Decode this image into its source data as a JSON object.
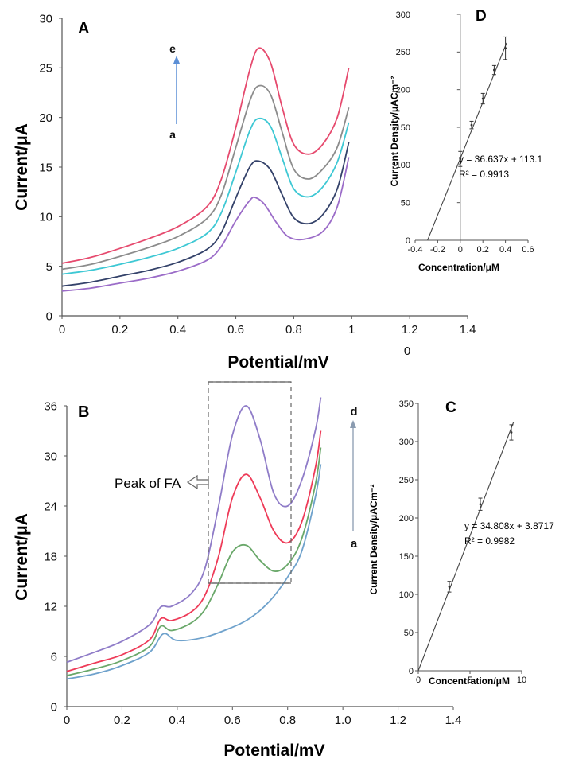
{
  "chart_data": [
    {
      "panel": "A",
      "type": "line",
      "xlabel": "Potential/mV",
      "ylabel": "Current/μA",
      "xlim": [
        0,
        1.4
      ],
      "ylim": [
        0,
        30
      ],
      "xticks": [
        "0",
        "0.2",
        "0.4",
        "0.6",
        "0.8",
        "1",
        "1.2",
        "1.4"
      ],
      "yticks": [
        "0",
        "5",
        "10",
        "15",
        "20",
        "25",
        "30"
      ],
      "arrow": {
        "from_label": "a",
        "to_label": "e"
      },
      "stray_label": "0",
      "series": [
        {
          "color": "#e64a6e",
          "x": [
            0,
            0.1,
            0.2,
            0.3,
            0.4,
            0.5,
            0.55,
            0.6,
            0.65,
            0.68,
            0.72,
            0.76,
            0.8,
            0.85,
            0.9,
            0.95,
            0.99
          ],
          "y": [
            5.3,
            5.9,
            6.8,
            7.8,
            9.0,
            11.0,
            13.8,
            19.0,
            25.0,
            27.0,
            25.5,
            21.0,
            17.3,
            16.3,
            17.3,
            20.0,
            25.0
          ]
        },
        {
          "color": "#8c8c8c",
          "x": [
            0,
            0.1,
            0.2,
            0.3,
            0.4,
            0.5,
            0.55,
            0.6,
            0.65,
            0.68,
            0.72,
            0.76,
            0.8,
            0.85,
            0.9,
            0.95,
            0.99
          ],
          "y": [
            4.7,
            5.2,
            6.0,
            6.9,
            8.0,
            9.8,
            12.2,
            17.0,
            21.8,
            23.2,
            22.3,
            18.5,
            14.8,
            13.8,
            14.8,
            17.0,
            21.0
          ]
        },
        {
          "color": "#3ec8d4",
          "x": [
            0,
            0.1,
            0.2,
            0.3,
            0.4,
            0.5,
            0.55,
            0.6,
            0.65,
            0.68,
            0.72,
            0.76,
            0.8,
            0.85,
            0.9,
            0.95,
            0.99
          ],
          "y": [
            4.2,
            4.6,
            5.2,
            5.9,
            6.8,
            8.3,
            10.4,
            14.5,
            18.8,
            19.9,
            19.1,
            15.9,
            12.8,
            12.0,
            13.0,
            15.5,
            19.5
          ]
        },
        {
          "color": "#34426a",
          "x": [
            0,
            0.1,
            0.2,
            0.3,
            0.4,
            0.5,
            0.55,
            0.6,
            0.65,
            0.68,
            0.72,
            0.76,
            0.8,
            0.85,
            0.9,
            0.95,
            0.99
          ],
          "y": [
            3.0,
            3.4,
            4.0,
            4.6,
            5.4,
            6.7,
            8.4,
            11.9,
            15.1,
            15.6,
            14.7,
            12.2,
            9.9,
            9.3,
            10.2,
            12.8,
            17.5
          ]
        },
        {
          "color": "#9b6cc8",
          "x": [
            0,
            0.1,
            0.2,
            0.3,
            0.4,
            0.5,
            0.55,
            0.6,
            0.65,
            0.67,
            0.7,
            0.74,
            0.78,
            0.83,
            0.9,
            0.95,
            0.99
          ],
          "y": [
            2.5,
            2.8,
            3.3,
            3.8,
            4.5,
            5.6,
            7.0,
            9.6,
            11.7,
            11.9,
            11.2,
            9.4,
            8.0,
            7.7,
            8.5,
            11.0,
            16.0
          ]
        }
      ]
    },
    {
      "panel": "B",
      "type": "line",
      "xlabel": "Potential/mV",
      "ylabel": "Current/μA",
      "xlim": [
        0,
        1.4
      ],
      "ylim": [
        0,
        36
      ],
      "xticks": [
        "0",
        "0.2",
        "0.4",
        "0.6",
        "0.8",
        "1.0",
        "1.2",
        "1.4"
      ],
      "yticks": [
        "0",
        "6",
        "12",
        "18",
        "24",
        "30",
        "36"
      ],
      "annotation": "Peak of FA",
      "arrow": {
        "from_label": "a",
        "to_label": "d"
      },
      "series": [
        {
          "color": "#8f7cc8",
          "x": [
            0,
            0.1,
            0.2,
            0.3,
            0.34,
            0.38,
            0.45,
            0.5,
            0.55,
            0.6,
            0.65,
            0.7,
            0.75,
            0.8,
            0.85,
            0.9,
            0.92
          ],
          "y": [
            5.3,
            6.5,
            7.8,
            9.8,
            11.9,
            12.0,
            13.5,
            16.5,
            24.0,
            32.5,
            36.0,
            32.0,
            25.5,
            24.0,
            27.0,
            33.0,
            37.0
          ]
        },
        {
          "color": "#ee3b58",
          "x": [
            0,
            0.1,
            0.2,
            0.3,
            0.34,
            0.38,
            0.45,
            0.5,
            0.55,
            0.6,
            0.65,
            0.7,
            0.75,
            0.8,
            0.85,
            0.9,
            0.92
          ],
          "y": [
            4.2,
            5.2,
            6.2,
            8.0,
            10.5,
            10.3,
            11.3,
            13.3,
            18.0,
            25.0,
            27.8,
            25.0,
            21.0,
            19.6,
            22.0,
            28.5,
            33.0
          ]
        },
        {
          "color": "#6aa86a",
          "x": [
            0,
            0.1,
            0.2,
            0.3,
            0.34,
            0.38,
            0.45,
            0.5,
            0.55,
            0.6,
            0.65,
            0.7,
            0.75,
            0.8,
            0.85,
            0.9,
            0.92
          ],
          "y": [
            3.7,
            4.5,
            5.5,
            7.2,
            9.6,
            9.1,
            10.0,
            11.6,
            14.8,
            18.5,
            19.3,
            17.5,
            16.2,
            17.0,
            20.0,
            26.5,
            31.0
          ]
        },
        {
          "color": "#6fa2cc",
          "x": [
            0,
            0.1,
            0.2,
            0.3,
            0.35,
            0.4,
            0.5,
            0.6,
            0.65,
            0.7,
            0.75,
            0.8,
            0.85,
            0.9,
            0.92
          ],
          "y": [
            3.3,
            3.9,
            4.9,
            6.5,
            8.7,
            7.9,
            8.3,
            9.5,
            10.3,
            11.5,
            13.2,
            15.5,
            18.5,
            25.0,
            29.0
          ]
        }
      ]
    },
    {
      "panel": "D",
      "type": "scatter",
      "xlabel": "Concentration/μM",
      "ylabel": "Current Density/μACm⁻²",
      "xlim": [
        -0.4,
        0.6
      ],
      "ylim": [
        0,
        300
      ],
      "xticks": [
        "-0.4",
        "-0.2",
        "0",
        "0.2",
        "0.4",
        "0.6"
      ],
      "yticks": [
        "0",
        "50",
        "100",
        "150",
        "200",
        "250",
        "300"
      ],
      "equation": "y = 36.637x + 113.1",
      "r2": "R² = 0.9913",
      "points": [
        {
          "x": 0.0,
          "y": 108,
          "err": 10
        },
        {
          "x": 0.1,
          "y": 153,
          "err": 5
        },
        {
          "x": 0.2,
          "y": 188,
          "err": 7
        },
        {
          "x": 0.3,
          "y": 226,
          "err": 6
        },
        {
          "x": 0.4,
          "y": 255,
          "err": 15
        }
      ],
      "fit_line": {
        "x": [
          -0.29,
          0.41
        ],
        "y": [
          0,
          262
        ]
      }
    },
    {
      "panel": "C",
      "type": "scatter",
      "xlabel": "Concentration/μM",
      "ylabel": "Current Density/μACm⁻²",
      "xlim": [
        0,
        10
      ],
      "ylim": [
        0,
        350
      ],
      "xticks": [
        "0",
        "5",
        "10"
      ],
      "yticks": [
        "0",
        "50",
        "100",
        "150",
        "200",
        "250",
        "300",
        "350"
      ],
      "equation": "y = 34.808x + 3.8717",
      "r2": "R² = 0.9982",
      "points": [
        {
          "x": 3,
          "y": 110,
          "err": 7
        },
        {
          "x": 6,
          "y": 218,
          "err": 8
        },
        {
          "x": 9,
          "y": 312,
          "err": 10
        }
      ],
      "fit_line": {
        "x": [
          0,
          9.2
        ],
        "y": [
          0,
          325
        ]
      }
    }
  ]
}
